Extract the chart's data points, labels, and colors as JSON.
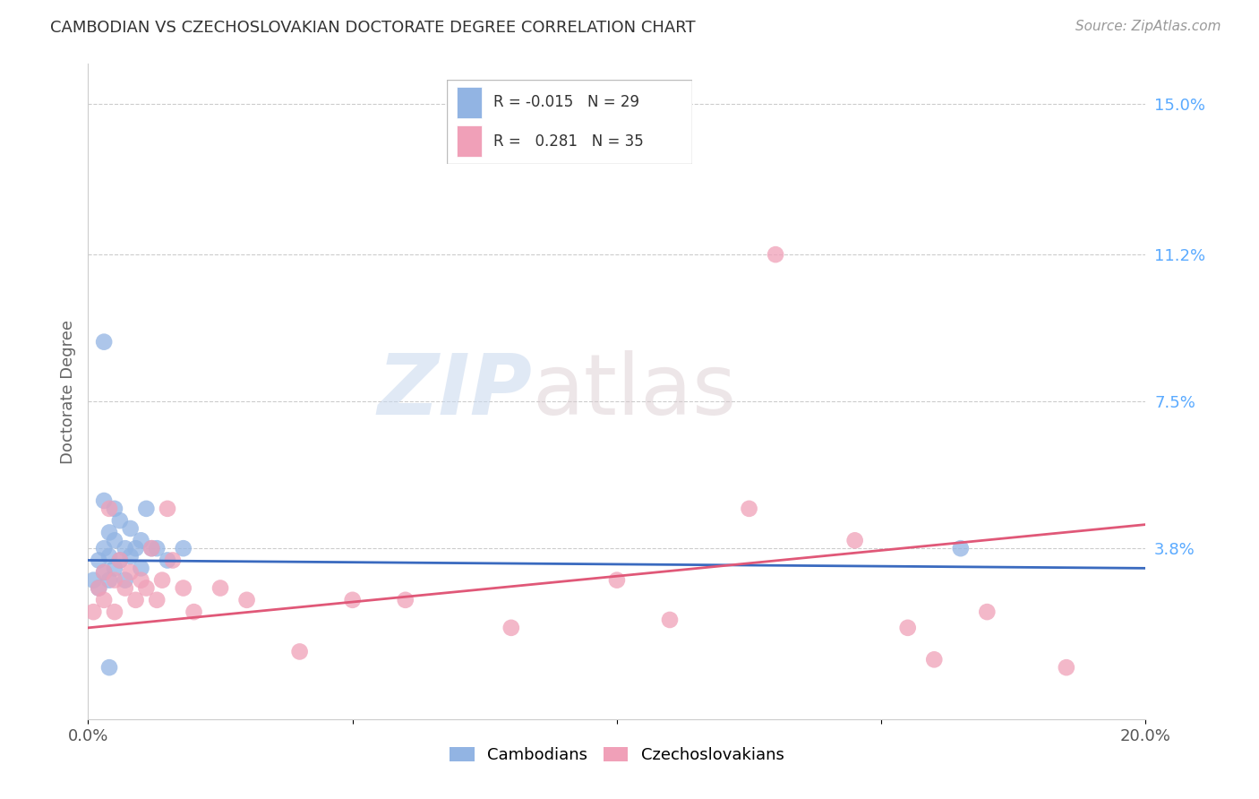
{
  "title": "CAMBODIAN VS CZECHOSLOVAKIAN DOCTORATE DEGREE CORRELATION CHART",
  "source": "Source: ZipAtlas.com",
  "ylabel": "Doctorate Degree",
  "xlim": [
    0.0,
    0.2
  ],
  "ylim": [
    -0.005,
    0.16
  ],
  "right_yticklabels": [
    "15.0%",
    "11.2%",
    "7.5%",
    "3.8%"
  ],
  "right_ytick_values": [
    0.15,
    0.112,
    0.075,
    0.038
  ],
  "watermark_zip": "ZIP",
  "watermark_atlas": "atlas",
  "legend_cambodian_R": "-0.015",
  "legend_cambodian_N": "29",
  "legend_czechoslovakian_R": "0.281",
  "legend_czechoslovakian_N": "35",
  "cambodian_color": "#92b4e3",
  "czechoslovakian_color": "#f0a0b8",
  "trend_blue": "#3a6abf",
  "trend_pink": "#e05878",
  "blue_line_x": [
    0.0,
    0.2
  ],
  "blue_line_y": [
    0.035,
    0.033
  ],
  "pink_line_x": [
    0.0,
    0.2
  ],
  "pink_line_y": [
    0.018,
    0.044
  ],
  "cambodian_x": [
    0.001,
    0.002,
    0.002,
    0.003,
    0.003,
    0.003,
    0.004,
    0.004,
    0.004,
    0.005,
    0.005,
    0.005,
    0.006,
    0.006,
    0.007,
    0.007,
    0.008,
    0.008,
    0.009,
    0.01,
    0.01,
    0.011,
    0.012,
    0.013,
    0.015,
    0.018,
    0.003,
    0.165,
    0.004
  ],
  "cambodian_y": [
    0.03,
    0.035,
    0.028,
    0.05,
    0.038,
    0.032,
    0.042,
    0.036,
    0.03,
    0.048,
    0.04,
    0.033,
    0.045,
    0.035,
    0.038,
    0.03,
    0.043,
    0.036,
    0.038,
    0.04,
    0.033,
    0.048,
    0.038,
    0.038,
    0.035,
    0.038,
    0.09,
    0.038,
    0.008
  ],
  "czechoslovakian_x": [
    0.001,
    0.002,
    0.003,
    0.003,
    0.004,
    0.005,
    0.005,
    0.006,
    0.007,
    0.008,
    0.009,
    0.01,
    0.011,
    0.012,
    0.013,
    0.014,
    0.015,
    0.016,
    0.018,
    0.02,
    0.025,
    0.03,
    0.04,
    0.05,
    0.06,
    0.08,
    0.1,
    0.11,
    0.125,
    0.13,
    0.145,
    0.155,
    0.16,
    0.17,
    0.185
  ],
  "czechoslovakian_y": [
    0.022,
    0.028,
    0.025,
    0.032,
    0.048,
    0.03,
    0.022,
    0.035,
    0.028,
    0.032,
    0.025,
    0.03,
    0.028,
    0.038,
    0.025,
    0.03,
    0.048,
    0.035,
    0.028,
    0.022,
    0.028,
    0.025,
    0.012,
    0.025,
    0.025,
    0.018,
    0.03,
    0.02,
    0.048,
    0.112,
    0.04,
    0.018,
    0.01,
    0.022,
    0.008
  ]
}
